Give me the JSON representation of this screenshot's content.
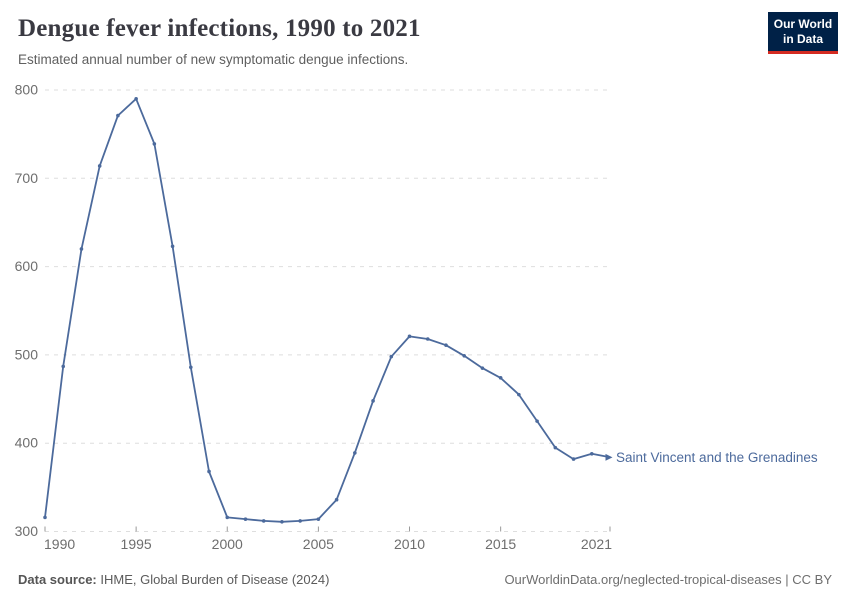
{
  "header": {
    "title": "Dengue fever infections, 1990 to 2021",
    "subtitle": "Estimated annual number of new symptomatic dengue infections.",
    "logo": {
      "line1": "Our World",
      "line2": "in Data"
    }
  },
  "chart_data": {
    "type": "line",
    "title": "Dengue fever infections, 1990 to 2021",
    "xlabel": "",
    "ylabel": "",
    "x": [
      1990,
      1991,
      1992,
      1993,
      1994,
      1995,
      1996,
      1997,
      1998,
      1999,
      2000,
      2001,
      2002,
      2003,
      2004,
      2005,
      2006,
      2007,
      2008,
      2009,
      2010,
      2011,
      2012,
      2013,
      2014,
      2015,
      2016,
      2017,
      2018,
      2019,
      2020,
      2021
    ],
    "series": [
      {
        "name": "Saint Vincent and the Grenadines",
        "color": "#4c6a9c",
        "values": [
          316,
          487,
          620,
          714,
          771,
          790,
          739,
          623,
          486,
          368,
          316,
          314,
          312,
          311,
          312,
          314,
          336,
          389,
          448,
          498,
          521,
          518,
          511,
          499,
          485,
          474,
          455,
          425,
          395,
          382,
          388,
          384
        ]
      }
    ],
    "x_ticks": [
      1990,
      1995,
      2000,
      2005,
      2010,
      2015,
      2021
    ],
    "y_ticks": [
      300,
      400,
      500,
      600,
      700,
      800
    ],
    "xlim": [
      1990,
      2021
    ],
    "ylim": [
      300,
      800
    ],
    "grid": "horizontal-dashed",
    "legend_position": "end-of-line-label"
  },
  "footer": {
    "source_label": "Data source:",
    "source_text": " IHME, Global Burden of Disease (2024)",
    "rights": "OurWorldinData.org/neglected-tropical-diseases | CC BY"
  },
  "colors": {
    "line": "#4c6a9c",
    "series_label": "#4c6a9c",
    "grid": "#dedede",
    "axis_text": "#6e6e6e",
    "tick": "#999999",
    "title_text": "#3a3a42",
    "subtitle_text": "#5f5f5f",
    "footer_text": "#5b5b5b",
    "logo_bg": "#002147",
    "logo_accent": "#d42b21"
  }
}
